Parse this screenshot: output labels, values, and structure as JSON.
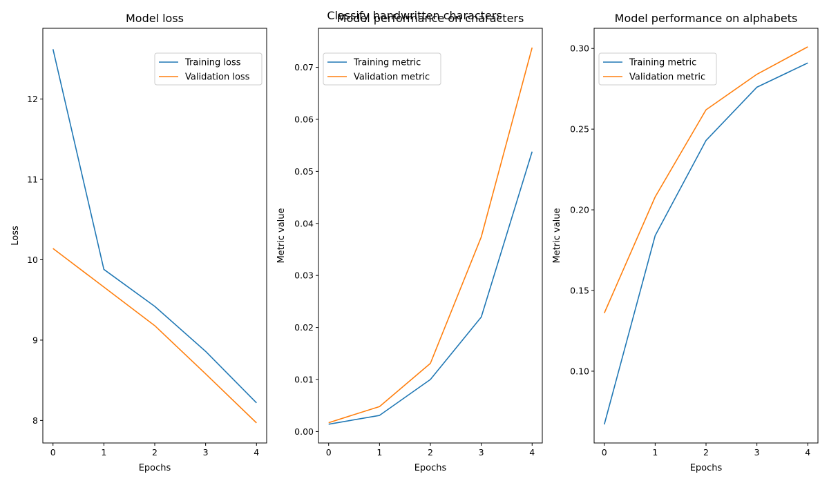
{
  "figure": {
    "suptitle": "Classify handwritten characters"
  },
  "colors": {
    "training": "#1f77b4",
    "validation": "#ff7f0e"
  },
  "chart_data": [
    {
      "type": "line",
      "title": "Model loss",
      "xlabel": "Epochs",
      "ylabel": "Loss",
      "x": [
        0,
        1,
        2,
        3,
        4
      ],
      "xticks": [
        0,
        1,
        2,
        3,
        4
      ],
      "yticks": [
        8,
        9,
        10,
        11,
        12
      ],
      "ytick_labels": [
        "8",
        "9",
        "10",
        "11",
        "12"
      ],
      "xlim": [
        -0.2,
        4.2
      ],
      "ylim": [
        7.72,
        12.88
      ],
      "grid": false,
      "legend": "top-right",
      "series": [
        {
          "name": "Training loss",
          "values": [
            12.62,
            9.88,
            9.42,
            8.86,
            8.22
          ]
        },
        {
          "name": "Validation loss",
          "values": [
            10.14,
            9.66,
            9.18,
            8.58,
            7.97
          ]
        }
      ]
    },
    {
      "type": "line",
      "title": "Model performance on characters",
      "xlabel": "Epochs",
      "ylabel": "Metric value",
      "x": [
        0,
        1,
        2,
        3,
        4
      ],
      "xticks": [
        0,
        1,
        2,
        3,
        4
      ],
      "yticks": [
        0,
        0.01,
        0.02,
        0.03,
        0.04,
        0.05,
        0.06,
        0.07
      ],
      "ytick_labels": [
        "0.00",
        "0.01",
        "0.02",
        "0.03",
        "0.04",
        "0.05",
        "0.06",
        "0.07"
      ],
      "xlim": [
        -0.2,
        4.2
      ],
      "ylim": [
        -0.0022,
        0.0775
      ],
      "grid": false,
      "legend": "top-left",
      "series": [
        {
          "name": "Training metric",
          "values": [
            0.0014,
            0.0031,
            0.01,
            0.022,
            0.0538
          ]
        },
        {
          "name": "Validation metric",
          "values": [
            0.0017,
            0.0048,
            0.0131,
            0.0374,
            0.0738
          ]
        }
      ]
    },
    {
      "type": "line",
      "title": "Model performance on alphabets",
      "xlabel": "Epochs",
      "ylabel": "Metric value",
      "x": [
        0,
        1,
        2,
        3,
        4
      ],
      "xticks": [
        0,
        1,
        2,
        3,
        4
      ],
      "yticks": [
        0.1,
        0.15,
        0.2,
        0.25,
        0.3
      ],
      "ytick_labels": [
        "0.10",
        "0.15",
        "0.20",
        "0.25",
        "0.30"
      ],
      "xlim": [
        -0.2,
        4.2
      ],
      "ylim": [
        0.0555,
        0.3125
      ],
      "grid": false,
      "legend": "top-left",
      "series": [
        {
          "name": "Training metric",
          "values": [
            0.067,
            0.184,
            0.243,
            0.276,
            0.291
          ]
        },
        {
          "name": "Validation metric",
          "values": [
            0.136,
            0.208,
            0.262,
            0.284,
            0.301
          ]
        }
      ]
    }
  ]
}
